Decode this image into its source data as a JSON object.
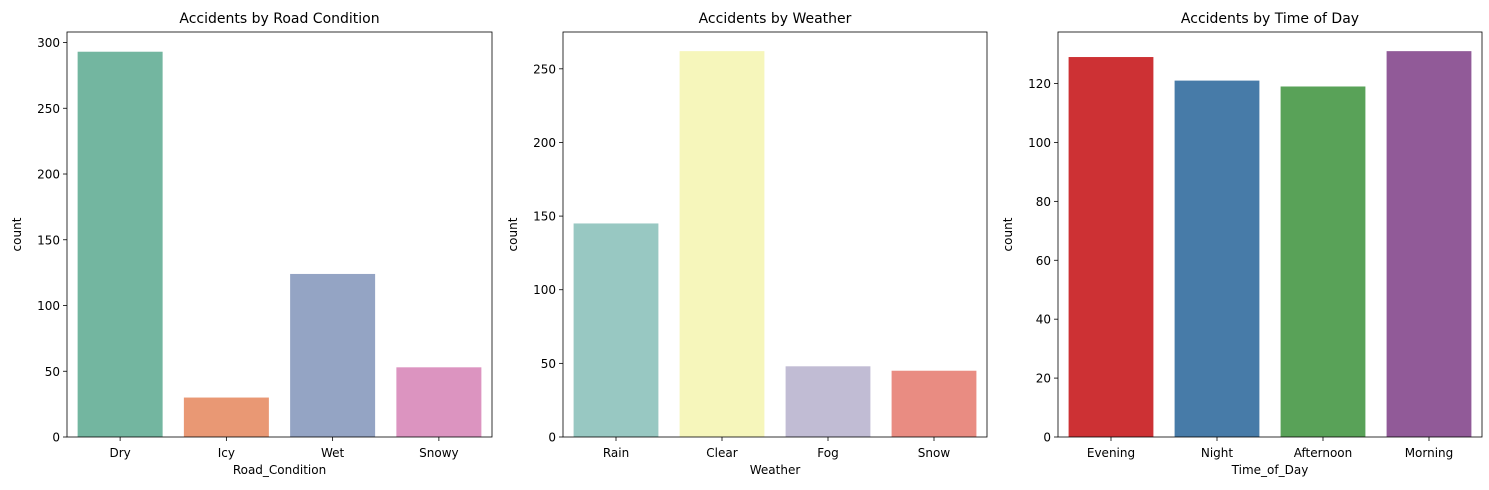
{
  "chart_data": [
    {
      "type": "bar",
      "title": "Accidents by Road Condition",
      "xlabel": "Road_Condition",
      "ylabel": "count",
      "categories": [
        "Dry",
        "Icy",
        "Wet",
        "Snowy"
      ],
      "values": [
        293,
        30,
        124,
        53
      ],
      "colors": [
        "#73b6a0",
        "#e99874",
        "#94a4c4",
        "#dc94c0"
      ],
      "ylim": [
        0,
        308
      ],
      "yticks": [
        0,
        50,
        100,
        150,
        200,
        250,
        300
      ],
      "ytick_labels": [
        "0",
        "50",
        "100",
        "150",
        "200",
        "250",
        "300"
      ],
      "grid": false
    },
    {
      "type": "bar",
      "title": "Accidents by Weather",
      "xlabel": "Weather",
      "ylabel": "count",
      "categories": [
        "Rain",
        "Clear",
        "Fog",
        "Snow"
      ],
      "values": [
        145,
        262,
        48,
        45
      ],
      "colors": [
        "#98c8c2",
        "#f6f6bb",
        "#c1bcd4",
        "#e98c82"
      ],
      "ylim": [
        0,
        275
      ],
      "yticks": [
        0,
        50,
        100,
        150,
        200,
        250
      ],
      "ytick_labels": [
        "0",
        "50",
        "100",
        "150",
        "200",
        "250"
      ],
      "grid": false
    },
    {
      "type": "bar",
      "title": "Accidents by Time of Day",
      "xlabel": "Time_of_Day",
      "ylabel": "count",
      "categories": [
        "Evening",
        "Night",
        "Afternoon",
        "Morning"
      ],
      "values": [
        129,
        121,
        119,
        131
      ],
      "colors": [
        "#cd3134",
        "#477ba8",
        "#59a258",
        "#915a98"
      ],
      "ylim": [
        0,
        137.5
      ],
      "yticks": [
        0,
        20,
        40,
        60,
        80,
        100,
        120
      ],
      "ytick_labels": [
        "0",
        "20",
        "40",
        "60",
        "80",
        "100",
        "120"
      ],
      "grid": false
    }
  ]
}
